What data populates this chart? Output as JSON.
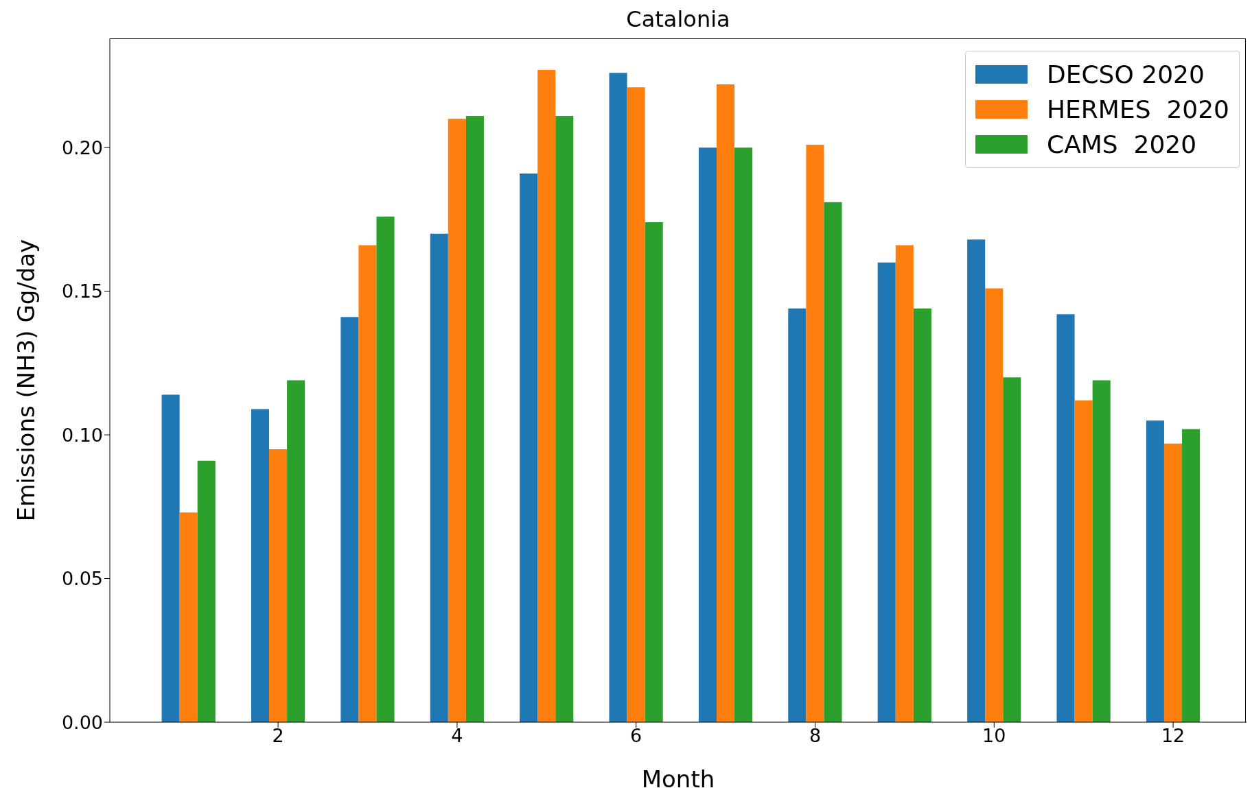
{
  "chart_data": {
    "type": "bar",
    "title": "Catalonia",
    "xlabel": "Month",
    "ylabel": "Emissions (NH3) Gg/day",
    "x": [
      1,
      2,
      3,
      4,
      5,
      6,
      7,
      8,
      9,
      10,
      11,
      12
    ],
    "series": [
      {
        "name": "DECSO 2020",
        "color": "#1f77b4",
        "values": [
          0.114,
          0.109,
          0.141,
          0.17,
          0.191,
          0.226,
          0.2,
          0.144,
          0.16,
          0.168,
          0.142,
          0.105
        ]
      },
      {
        "name": "HERMES  2020",
        "color": "#ff7f0e",
        "values": [
          0.073,
          0.095,
          0.166,
          0.21,
          0.227,
          0.221,
          0.222,
          0.201,
          0.166,
          0.151,
          0.112,
          0.097
        ]
      },
      {
        "name": "CAMS  2020",
        "color": "#2ca02c",
        "values": [
          0.091,
          0.119,
          0.176,
          0.211,
          0.211,
          0.174,
          0.2,
          0.181,
          0.144,
          0.12,
          0.119,
          0.102
        ]
      }
    ],
    "xlim": [
      0.12,
      12.82
    ],
    "xticks": [
      2,
      4,
      6,
      8,
      10,
      12
    ],
    "ylim": [
      0,
      0.238
    ],
    "yticks": [
      {
        "value": 0,
        "label": "0.00"
      },
      {
        "value": 0.05,
        "label": "0.05"
      },
      {
        "value": 0.1,
        "label": "0.10"
      },
      {
        "value": 0.15,
        "label": "0.15"
      },
      {
        "value": 0.2,
        "label": "0.20"
      }
    ],
    "grid": false,
    "legend": "top right"
  }
}
